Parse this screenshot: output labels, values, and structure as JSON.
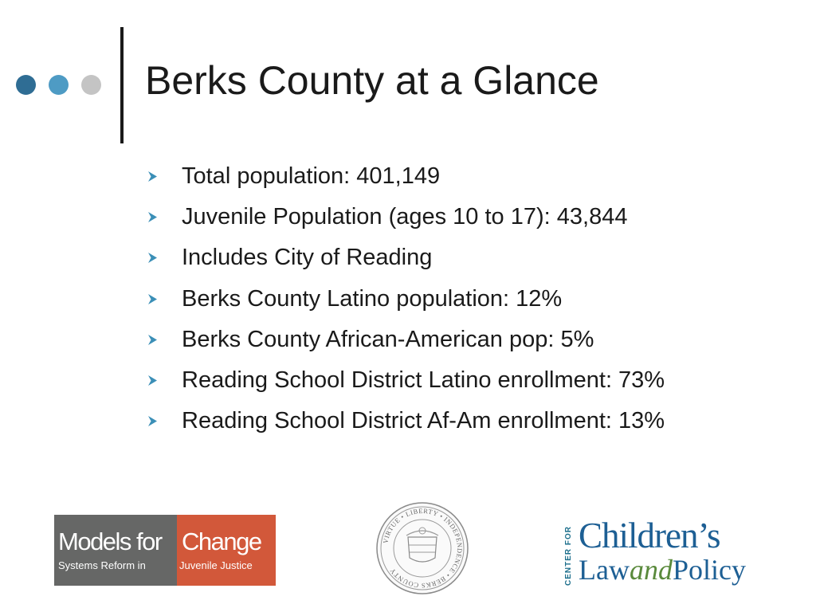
{
  "slide": {
    "title": "Berks County at a Glance",
    "accent_colors": {
      "dot_1": "#2f6d94",
      "dot_2": "#4e9bc4",
      "dot_3": "#c4c4c4",
      "bullet_arrow": "#3b8fb7"
    },
    "bullet_icon": "chevron-right-icon",
    "bullets": [
      "Total population: 401,149",
      "Juvenile Population (ages 10 to 17): 43,844",
      "Includes City of Reading",
      "Berks County Latino population:  12%",
      "Berks County African-American pop: 5%",
      "Reading School District Latino enrollment:  73%",
      "Reading School District Af-Am enrollment:  13%"
    ]
  },
  "logos": {
    "models_for_change": {
      "word_1": "Models for",
      "word_2": "Change",
      "tagline_1": "Systems Reform in",
      "tagline_2": "Juvenile Justice"
    },
    "county_seal": {
      "text": "VIRTUE • LIBERTY • INDEPENDENCE • BERKS COUNTY"
    },
    "center_for_childrens_law_and_policy": {
      "vertical_text": "CENTER FOR",
      "line_1": "Children’s",
      "line_2a": "Law",
      "line_2b": "and",
      "line_2c": "Policy"
    }
  }
}
